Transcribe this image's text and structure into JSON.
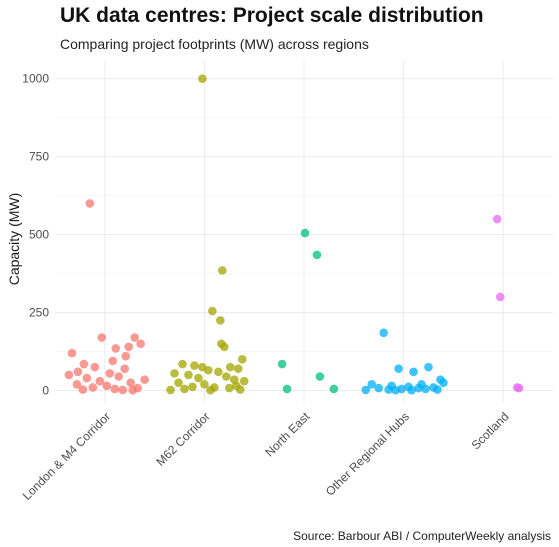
{
  "chart_data": {
    "type": "scatter",
    "title": "UK data centres: Project scale distribution",
    "subtitle": "Comparing project footprints (MW) across regions",
    "caption": "Source: Barbour ABI / ComputerWeekly analysis",
    "xlabel": "",
    "ylabel": "Capacity (MW)",
    "ylim": [
      -40,
      1060
    ],
    "yticks": [
      0,
      250,
      500,
      750,
      1000
    ],
    "grid": true,
    "legend": "none",
    "categories": [
      "London & M4 Corridor",
      "M62 Corridor",
      "North East",
      "Other Regional Hubs",
      "Scotland"
    ],
    "series": [
      {
        "category": "London & M4 Corridor",
        "color": "#F8766D",
        "points": [
          {
            "jitter": -0.15,
            "y": 600
          },
          {
            "jitter": -0.03,
            "y": 170
          },
          {
            "jitter": 0.3,
            "y": 170
          },
          {
            "jitter": 0.36,
            "y": 150
          },
          {
            "jitter": 0.24,
            "y": 140
          },
          {
            "jitter": 0.11,
            "y": 135
          },
          {
            "jitter": -0.33,
            "y": 120
          },
          {
            "jitter": 0.21,
            "y": 110
          },
          {
            "jitter": 0.08,
            "y": 95
          },
          {
            "jitter": -0.21,
            "y": 85
          },
          {
            "jitter": -0.1,
            "y": 75
          },
          {
            "jitter": 0.2,
            "y": 70
          },
          {
            "jitter": -0.27,
            "y": 60
          },
          {
            "jitter": 0.05,
            "y": 55
          },
          {
            "jitter": -0.36,
            "y": 50
          },
          {
            "jitter": 0.14,
            "y": 45
          },
          {
            "jitter": -0.18,
            "y": 40
          },
          {
            "jitter": 0.4,
            "y": 35
          },
          {
            "jitter": -0.05,
            "y": 30
          },
          {
            "jitter": 0.26,
            "y": 25
          },
          {
            "jitter": -0.28,
            "y": 20
          },
          {
            "jitter": 0.02,
            "y": 15
          },
          {
            "jitter": -0.12,
            "y": 10
          },
          {
            "jitter": 0.33,
            "y": 8
          },
          {
            "jitter": 0.1,
            "y": 5
          },
          {
            "jitter": -0.22,
            "y": 3
          },
          {
            "jitter": 0.18,
            "y": 2
          },
          {
            "jitter": 0.28,
            "y": 1
          }
        ]
      },
      {
        "category": "M62 Corridor",
        "color": "#A3A500",
        "points": [
          {
            "jitter": -0.02,
            "y": 1000
          },
          {
            "jitter": 0.18,
            "y": 385
          },
          {
            "jitter": 0.08,
            "y": 255
          },
          {
            "jitter": 0.16,
            "y": 225
          },
          {
            "jitter": 0.17,
            "y": 150
          },
          {
            "jitter": 0.2,
            "y": 140
          },
          {
            "jitter": 0.38,
            "y": 100
          },
          {
            "jitter": -0.22,
            "y": 85
          },
          {
            "jitter": -0.1,
            "y": 80
          },
          {
            "jitter": -0.02,
            "y": 75
          },
          {
            "jitter": 0.26,
            "y": 75
          },
          {
            "jitter": 0.34,
            "y": 70
          },
          {
            "jitter": 0.04,
            "y": 65
          },
          {
            "jitter": 0.14,
            "y": 60
          },
          {
            "jitter": -0.3,
            "y": 55
          },
          {
            "jitter": -0.16,
            "y": 50
          },
          {
            "jitter": 0.22,
            "y": 45
          },
          {
            "jitter": -0.06,
            "y": 40
          },
          {
            "jitter": 0.3,
            "y": 35
          },
          {
            "jitter": 0.4,
            "y": 30
          },
          {
            "jitter": -0.26,
            "y": 25
          },
          {
            "jitter": 0.0,
            "y": 20
          },
          {
            "jitter": 0.32,
            "y": 15
          },
          {
            "jitter": -0.12,
            "y": 12
          },
          {
            "jitter": 0.1,
            "y": 10
          },
          {
            "jitter": 0.25,
            "y": 8
          },
          {
            "jitter": -0.2,
            "y": 5
          },
          {
            "jitter": 0.36,
            "y": 3
          },
          {
            "jitter": -0.34,
            "y": 2
          },
          {
            "jitter": 0.06,
            "y": 1
          }
        ]
      },
      {
        "category": "North East",
        "color": "#00BF7D",
        "points": [
          {
            "jitter": 0.01,
            "y": 505
          },
          {
            "jitter": 0.13,
            "y": 435
          },
          {
            "jitter": -0.22,
            "y": 85
          },
          {
            "jitter": 0.16,
            "y": 45
          },
          {
            "jitter": -0.17,
            "y": 5
          },
          {
            "jitter": 0.3,
            "y": 5
          }
        ]
      },
      {
        "category": "Other Regional Hubs",
        "color": "#00B0F6",
        "points": [
          {
            "jitter": -0.2,
            "y": 185
          },
          {
            "jitter": -0.05,
            "y": 70
          },
          {
            "jitter": 0.25,
            "y": 75
          },
          {
            "jitter": 0.1,
            "y": 60
          },
          {
            "jitter": 0.37,
            "y": 35
          },
          {
            "jitter": 0.4,
            "y": 25
          },
          {
            "jitter": -0.32,
            "y": 20
          },
          {
            "jitter": 0.18,
            "y": 20
          },
          {
            "jitter": -0.12,
            "y": 15
          },
          {
            "jitter": 0.05,
            "y": 12
          },
          {
            "jitter": 0.3,
            "y": 10
          },
          {
            "jitter": -0.25,
            "y": 8
          },
          {
            "jitter": 0.15,
            "y": 8
          },
          {
            "jitter": -0.02,
            "y": 5
          },
          {
            "jitter": 0.22,
            "y": 5
          },
          {
            "jitter": -0.15,
            "y": 3
          },
          {
            "jitter": 0.34,
            "y": 3
          },
          {
            "jitter": -0.38,
            "y": 2
          },
          {
            "jitter": 0.08,
            "y": 1
          },
          {
            "jitter": -0.08,
            "y": 1
          }
        ]
      },
      {
        "category": "Scotland",
        "color": "#E76BF3",
        "points": [
          {
            "jitter": -0.06,
            "y": 550
          },
          {
            "jitter": -0.03,
            "y": 300
          },
          {
            "jitter": 0.14,
            "y": 10
          },
          {
            "jitter": 0.16,
            "y": 8
          }
        ]
      }
    ]
  }
}
